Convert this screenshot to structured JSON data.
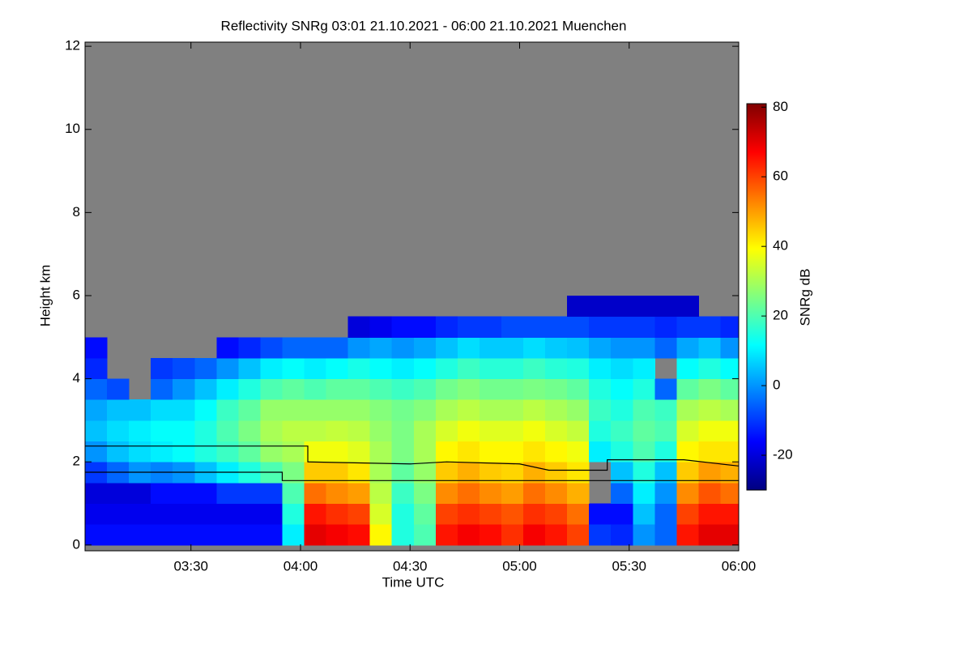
{
  "chart_data": {
    "type": "heatmap",
    "title": "Reflectivity SNRg   03:01 21.10.2021 - 06:00 21.10.2021 Muenchen",
    "x_label": "Time UTC",
    "y_label": "Height km",
    "colorbar_label": "SNRg dB",
    "xlim": [
      "03:01",
      "06:00"
    ],
    "xticks": [
      "03:30",
      "04:00",
      "04:30",
      "05:00",
      "05:30",
      "06:00"
    ],
    "ylim": [
      -0.14,
      12.1
    ],
    "yticks": [
      0,
      2,
      4,
      6,
      8,
      10,
      12
    ],
    "clim": [
      -30,
      81
    ],
    "cticks": [
      -20,
      0,
      20,
      40,
      60,
      80
    ],
    "background": "#808080",
    "x": [
      "03:04",
      "03:10",
      "03:16",
      "03:22",
      "03:28",
      "03:34",
      "03:40",
      "03:46",
      "03:52",
      "03:58",
      "04:04",
      "04:10",
      "04:16",
      "04:22",
      "04:28",
      "04:34",
      "04:40",
      "04:46",
      "04:52",
      "04:58",
      "05:04",
      "05:10",
      "05:16",
      "05:22",
      "05:28",
      "05:34",
      "05:40",
      "05:46",
      "05:52",
      "05:58"
    ],
    "y": [
      0.25,
      0.75,
      1.25,
      1.75,
      2.25,
      2.75,
      3.25,
      3.75,
      4.25,
      4.75,
      5.25,
      5.75
    ],
    "z": [
      [
        -15,
        -15,
        -15,
        -15,
        -15,
        -15,
        -15,
        -15,
        -15,
        10,
        70,
        68,
        66,
        40,
        15,
        20,
        65,
        68,
        66,
        62,
        68,
        65,
        60,
        -10,
        -12,
        0,
        -5,
        65,
        70,
        70
      ],
      [
        -18,
        -18,
        -18,
        -18,
        -18,
        -18,
        -18,
        -18,
        -18,
        15,
        65,
        62,
        60,
        35,
        15,
        22,
        60,
        62,
        60,
        58,
        62,
        60,
        55,
        -15,
        -15,
        5,
        -5,
        60,
        65,
        65
      ],
      [
        -20,
        -20,
        -20,
        -15,
        -15,
        -15,
        -10,
        -10,
        -10,
        20,
        55,
        52,
        50,
        32,
        18,
        25,
        52,
        55,
        52,
        50,
        55,
        52,
        48,
        null,
        -5,
        10,
        0,
        52,
        58,
        55
      ],
      [
        -10,
        -5,
        0,
        -2,
        0,
        5,
        10,
        15,
        20,
        25,
        45,
        45,
        42,
        30,
        22,
        28,
        45,
        48,
        45,
        44,
        48,
        45,
        42,
        null,
        5,
        15,
        5,
        45,
        50,
        48
      ],
      [
        0,
        5,
        8,
        10,
        12,
        15,
        18,
        22,
        28,
        30,
        38,
        38,
        36,
        30,
        25,
        30,
        40,
        42,
        40,
        40,
        42,
        40,
        38,
        10,
        15,
        20,
        15,
        40,
        42,
        42
      ],
      [
        5,
        8,
        10,
        12,
        12,
        15,
        20,
        25,
        30,
        32,
        32,
        33,
        32,
        28,
        25,
        30,
        35,
        38,
        36,
        36,
        38,
        35,
        33,
        15,
        18,
        22,
        20,
        35,
        38,
        38
      ],
      [
        2,
        5,
        5,
        8,
        8,
        12,
        18,
        22,
        28,
        28,
        28,
        28,
        28,
        26,
        24,
        26,
        30,
        32,
        30,
        30,
        32,
        30,
        28,
        18,
        15,
        20,
        18,
        30,
        32,
        30
      ],
      [
        -5,
        -8,
        null,
        -5,
        0,
        5,
        10,
        15,
        20,
        22,
        20,
        22,
        22,
        20,
        18,
        20,
        24,
        26,
        24,
        24,
        25,
        24,
        22,
        15,
        12,
        15,
        -5,
        22,
        25,
        22
      ],
      [
        -12,
        null,
        null,
        -10,
        -8,
        -5,
        0,
        5,
        10,
        12,
        10,
        12,
        14,
        12,
        10,
        12,
        15,
        18,
        16,
        16,
        18,
        16,
        15,
        10,
        8,
        10,
        null,
        12,
        15,
        12
      ],
      [
        -15,
        null,
        null,
        null,
        null,
        null,
        -15,
        -12,
        -8,
        -5,
        -5,
        -5,
        0,
        2,
        0,
        2,
        5,
        8,
        6,
        6,
        8,
        6,
        5,
        2,
        0,
        0,
        -5,
        2,
        5,
        0
      ],
      [
        null,
        null,
        null,
        null,
        null,
        null,
        null,
        null,
        null,
        null,
        null,
        null,
        -20,
        -18,
        -15,
        -15,
        -12,
        -10,
        -10,
        -8,
        -8,
        -8,
        -8,
        -10,
        -10,
        -10,
        -12,
        -10,
        -10,
        -12
      ],
      [
        null,
        null,
        null,
        null,
        null,
        null,
        null,
        null,
        null,
        null,
        null,
        null,
        null,
        null,
        null,
        null,
        null,
        null,
        null,
        null,
        null,
        null,
        -22,
        -22,
        -22,
        -22,
        -22,
        -22,
        null,
        null
      ]
    ],
    "lines": [
      {
        "color": "#000000",
        "x": [
          "03:01",
          "04:02",
          "04:02",
          "04:30",
          "04:40",
          "05:00",
          "05:08",
          "05:24",
          "05:24",
          "05:45",
          "06:00"
        ],
        "values": [
          2.38,
          2.38,
          2.0,
          1.95,
          2.0,
          1.95,
          1.8,
          1.8,
          2.05,
          2.05,
          1.9
        ]
      },
      {
        "color": "#000000",
        "x": [
          "03:01",
          "03:55",
          "03:55",
          "06:00"
        ],
        "values": [
          1.75,
          1.75,
          1.55,
          1.55
        ]
      }
    ]
  }
}
